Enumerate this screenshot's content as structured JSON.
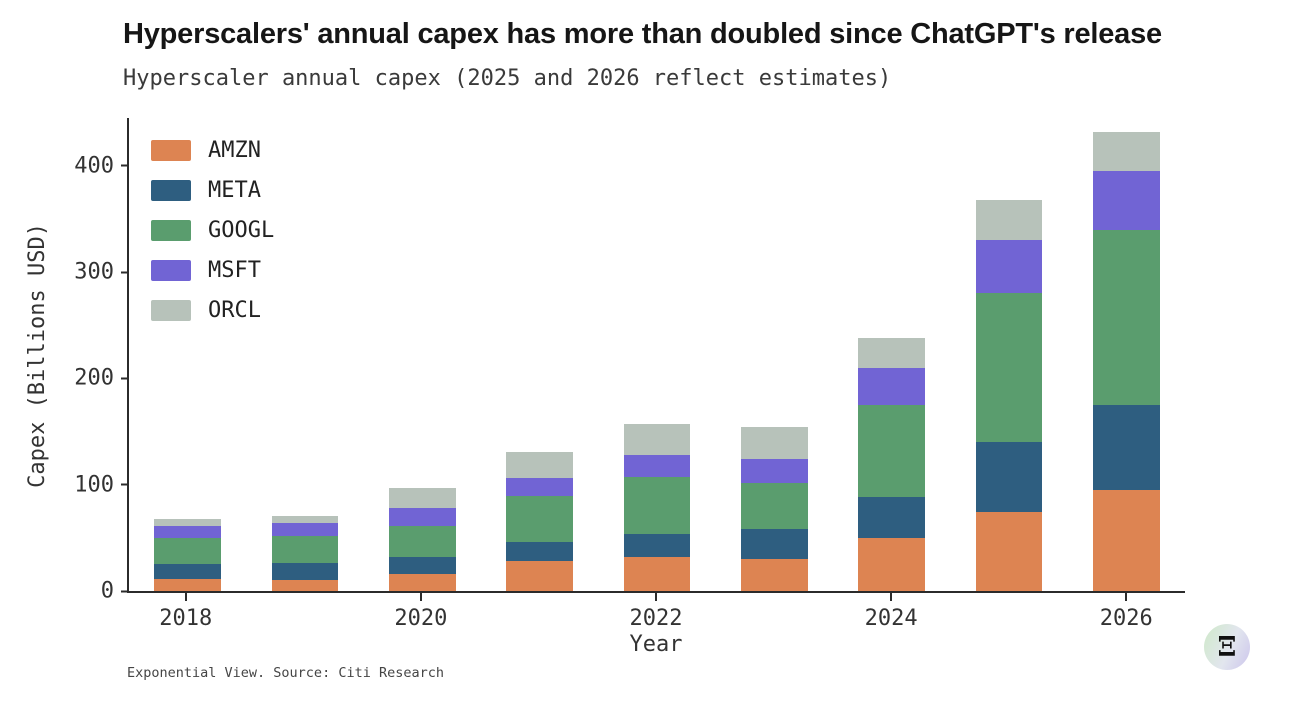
{
  "chart_data": {
    "type": "bar",
    "stacked": true,
    "title": "Hyperscalers' annual capex has more than doubled since ChatGPT's release",
    "subtitle": "Hyperscaler annual capex (2025 and 2026 reflect estimates)",
    "xlabel": "Year",
    "ylabel": "Capex (Billions USD)",
    "categories": [
      "2018",
      "2019",
      "2020",
      "2021",
      "2022",
      "2023",
      "2024",
      "2025",
      "2026"
    ],
    "x_tick_labels": [
      "2018",
      "",
      "2020",
      "",
      "2022",
      "",
      "2024",
      "",
      "2026"
    ],
    "y_ticks": [
      0,
      100,
      200,
      300,
      400
    ],
    "ylim": [
      0,
      445
    ],
    "grid": false,
    "legend_position": "upper left",
    "series": [
      {
        "name": "AMZN",
        "color": "#dd8452",
        "values": [
          11,
          10,
          16,
          28,
          32,
          30,
          50,
          74,
          95
        ]
      },
      {
        "name": "META",
        "color": "#2e5e80",
        "values": [
          14,
          16,
          16,
          18,
          22,
          28,
          38,
          66,
          80
        ]
      },
      {
        "name": "GOOGL",
        "color": "#5a9d6e",
        "values": [
          25,
          26,
          29,
          43,
          53,
          44,
          87,
          140,
          165
        ]
      },
      {
        "name": "MSFT",
        "color": "#7164d4",
        "values": [
          11,
          12,
          17,
          17,
          21,
          22,
          35,
          50,
          55
        ]
      },
      {
        "name": "ORCL",
        "color": "#b7c2ba",
        "values": [
          7,
          7,
          19,
          25,
          29,
          30,
          28,
          38,
          37
        ]
      }
    ]
  },
  "footer": {
    "source": "Exponential View. Source: Citi Research",
    "logo_glyph": "Ξ"
  }
}
